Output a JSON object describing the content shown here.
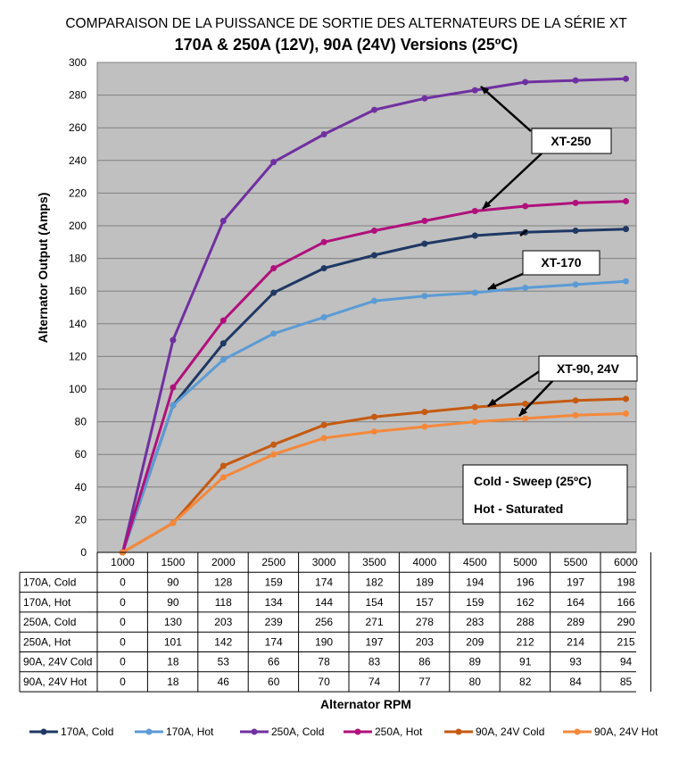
{
  "chart_data": {
    "type": "line",
    "title": "COMPARAISON DE LA PUISSANCE DE SORTIE DES ALTERNATEURS DE LA SÉRIE XT",
    "subtitle": "170A & 250A (12V), 90A (24V) Versions (25ºC)",
    "xlabel": "Alternator RPM",
    "ylabel": "Alternator Output (Amps)",
    "ylim": [
      0,
      300
    ],
    "y_ticks": [
      "0",
      "20",
      "40",
      "60",
      "80",
      "100",
      "120",
      "140",
      "160",
      "180",
      "200",
      "220",
      "240",
      "260",
      "280",
      "300"
    ],
    "categories": [
      "1000",
      "1500",
      "2000",
      "2500",
      "3000",
      "3500",
      "4000",
      "4500",
      "5000",
      "5500",
      "6000"
    ],
    "grid": true,
    "legend_position": "bottom",
    "data_table": true,
    "series": [
      {
        "name": "170A, Cold",
        "color": "#1f3864",
        "values": [
          0,
          90,
          128,
          159,
          174,
          182,
          189,
          194,
          196,
          197,
          198
        ]
      },
      {
        "name": "170A, Hot",
        "color": "#5b9bd5",
        "values": [
          0,
          90,
          118,
          134,
          144,
          154,
          157,
          159,
          162,
          164,
          166
        ]
      },
      {
        "name": "250A, Cold",
        "color": "#7030a0",
        "values": [
          0,
          130,
          203,
          239,
          256,
          271,
          278,
          283,
          288,
          289,
          290
        ]
      },
      {
        "name": "250A, Hot",
        "color": "#b0107c",
        "values": [
          0,
          101,
          142,
          174,
          190,
          197,
          203,
          209,
          212,
          214,
          215
        ]
      },
      {
        "name": "90A, 24V Cold",
        "color": "#c55a11",
        "values": [
          0,
          18,
          53,
          66,
          78,
          83,
          86,
          89,
          91,
          93,
          94
        ]
      },
      {
        "name": "90A, 24V Hot",
        "color": "#f4883a",
        "values": [
          0,
          18,
          46,
          60,
          70,
          74,
          77,
          80,
          82,
          84,
          85
        ]
      }
    ],
    "annotations": {
      "callouts": [
        "XT-250",
        "XT-170",
        "XT-90, 24V"
      ],
      "note_line1": "Cold - Sweep (25ºC)",
      "note_line2": "Hot - Saturated"
    }
  }
}
